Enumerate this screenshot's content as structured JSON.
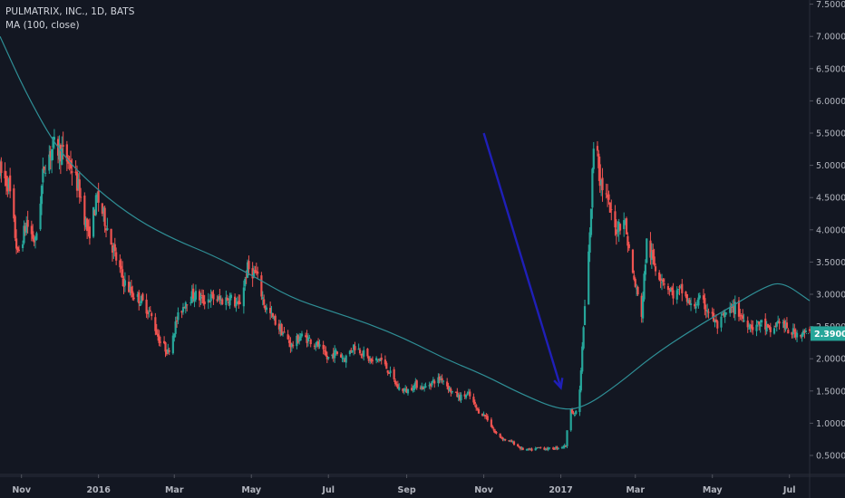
{
  "legend": {
    "symbol_line": "PULMATRIX, INC., 1D, BATS",
    "indicator_line": "MA (100, close)"
  },
  "colors": {
    "background": "#131722",
    "up": "#26a69a",
    "down": "#ef5350",
    "ma": "#2f8f96",
    "arrow": "#1f1fb8",
    "axis_text": "#b2b5be",
    "price_label_bg": "#26a69a"
  },
  "chart_data": {
    "type": "candlestick",
    "title": "PULMATRIX, INC., 1D, BATS",
    "indicator": "MA (100, close)",
    "x_ticks": [
      {
        "label": "Nov",
        "date": "2015-11-01"
      },
      {
        "label": "2016",
        "date": "2016-01-01"
      },
      {
        "label": "Mar",
        "date": "2016-03-01"
      },
      {
        "label": "May",
        "date": "2016-05-01"
      },
      {
        "label": "Jul",
        "date": "2016-07-01"
      },
      {
        "label": "Sep",
        "date": "2016-09-01"
      },
      {
        "label": "Nov",
        "date": "2016-11-01"
      },
      {
        "label": "2017",
        "date": "2017-01-01"
      },
      {
        "label": "Mar",
        "date": "2017-03-01"
      },
      {
        "label": "May",
        "date": "2017-05-01"
      },
      {
        "label": "Jul",
        "date": "2017-07-01"
      }
    ],
    "y_ticks": [
      "0.5000",
      "1.0000",
      "1.5000",
      "2.0000",
      "2.5000",
      "3.0000",
      "3.5000",
      "4.0000",
      "4.5000",
      "5.0000",
      "5.5000",
      "6.0000",
      "6.5000",
      "7.0000",
      "7.5000"
    ],
    "ylim": [
      0.0,
      7.5
    ],
    "xlim": [
      "2015-10-15",
      "2017-07-17"
    ],
    "last_price": {
      "value": 2.39,
      "label": "2.3900"
    },
    "price_path": [
      [
        "2015-10-15",
        4.9
      ],
      [
        "2015-10-22",
        4.7
      ],
      [
        "2015-10-29",
        3.6
      ],
      [
        "2015-11-05",
        4.1
      ],
      [
        "2015-11-12",
        3.8
      ],
      [
        "2015-11-19",
        5.0
      ],
      [
        "2015-11-26",
        5.3
      ],
      [
        "2015-12-03",
        5.2
      ],
      [
        "2015-12-10",
        5.0
      ],
      [
        "2015-12-17",
        4.6
      ],
      [
        "2015-12-24",
        3.9
      ],
      [
        "2015-12-31",
        4.5
      ],
      [
        "2016-01-07",
        4.1
      ],
      [
        "2016-01-14",
        3.6
      ],
      [
        "2016-01-21",
        3.2
      ],
      [
        "2016-01-28",
        3.0
      ],
      [
        "2016-02-04",
        2.9
      ],
      [
        "2016-02-11",
        2.7
      ],
      [
        "2016-02-18",
        2.3
      ],
      [
        "2016-02-25",
        2.1
      ],
      [
        "2016-03-03",
        2.6
      ],
      [
        "2016-03-10",
        2.9
      ],
      [
        "2016-03-17",
        3.0
      ],
      [
        "2016-03-24",
        2.9
      ],
      [
        "2016-03-31",
        2.95
      ],
      [
        "2016-04-07",
        2.9
      ],
      [
        "2016-04-14",
        2.95
      ],
      [
        "2016-04-21",
        2.8
      ],
      [
        "2016-04-28",
        3.4
      ],
      [
        "2016-05-05",
        3.3
      ],
      [
        "2016-05-12",
        2.8
      ],
      [
        "2016-05-19",
        2.6
      ],
      [
        "2016-05-26",
        2.4
      ],
      [
        "2016-06-02",
        2.2
      ],
      [
        "2016-06-09",
        2.35
      ],
      [
        "2016-06-16",
        2.3
      ],
      [
        "2016-06-23",
        2.2
      ],
      [
        "2016-06-30",
        2.0
      ],
      [
        "2016-07-07",
        2.1
      ],
      [
        "2016-07-14",
        2.0
      ],
      [
        "2016-07-21",
        2.2
      ],
      [
        "2016-07-28",
        2.1
      ],
      [
        "2016-08-04",
        1.95
      ],
      [
        "2016-08-11",
        2.0
      ],
      [
        "2016-08-18",
        1.8
      ],
      [
        "2016-08-25",
        1.55
      ],
      [
        "2016-09-01",
        1.5
      ],
      [
        "2016-09-08",
        1.6
      ],
      [
        "2016-09-15",
        1.55
      ],
      [
        "2016-09-22",
        1.65
      ],
      [
        "2016-09-29",
        1.7
      ],
      [
        "2016-10-06",
        1.5
      ],
      [
        "2016-10-13",
        1.4
      ],
      [
        "2016-10-20",
        1.45
      ],
      [
        "2016-10-27",
        1.2
      ],
      [
        "2016-11-03",
        1.1
      ],
      [
        "2016-11-10",
        0.85
      ],
      [
        "2016-11-17",
        0.75
      ],
      [
        "2016-11-24",
        0.7
      ],
      [
        "2016-12-01",
        0.6
      ],
      [
        "2016-12-08",
        0.58
      ],
      [
        "2016-12-15",
        0.62
      ],
      [
        "2016-12-22",
        0.6
      ],
      [
        "2016-12-29",
        0.62
      ],
      [
        "2017-01-05",
        0.65
      ],
      [
        "2017-01-08",
        1.3
      ],
      [
        "2017-01-12",
        1.1
      ],
      [
        "2017-01-16",
        1.5
      ],
      [
        "2017-01-20",
        2.8
      ],
      [
        "2017-01-24",
        3.9
      ],
      [
        "2017-01-28",
        5.8
      ],
      [
        "2017-02-01",
        4.8
      ],
      [
        "2017-02-06",
        4.5
      ],
      [
        "2017-02-13",
        4.0
      ],
      [
        "2017-02-20",
        4.2
      ],
      [
        "2017-02-27",
        3.3
      ],
      [
        "2017-03-06",
        2.7
      ],
      [
        "2017-03-10",
        3.8
      ],
      [
        "2017-03-17",
        3.4
      ],
      [
        "2017-03-24",
        3.2
      ],
      [
        "2017-03-31",
        3.0
      ],
      [
        "2017-04-07",
        3.05
      ],
      [
        "2017-04-14",
        2.8
      ],
      [
        "2017-04-21",
        2.9
      ],
      [
        "2017-04-28",
        2.75
      ],
      [
        "2017-05-05",
        2.5
      ],
      [
        "2017-05-12",
        2.7
      ],
      [
        "2017-05-19",
        2.8
      ],
      [
        "2017-05-26",
        2.6
      ],
      [
        "2017-06-02",
        2.5
      ],
      [
        "2017-06-09",
        2.55
      ],
      [
        "2017-06-16",
        2.4
      ],
      [
        "2017-06-23",
        2.6
      ],
      [
        "2017-06-30",
        2.42
      ],
      [
        "2017-07-07",
        2.4
      ],
      [
        "2017-07-14",
        2.39
      ]
    ],
    "ma_path": [
      [
        "2015-10-15",
        7.0
      ],
      [
        "2015-11-05",
        6.1
      ],
      [
        "2015-12-01",
        5.2
      ],
      [
        "2016-01-01",
        4.6
      ],
      [
        "2016-02-01",
        4.15
      ],
      [
        "2016-03-01",
        3.85
      ],
      [
        "2016-04-01",
        3.6
      ],
      [
        "2016-05-01",
        3.3
      ],
      [
        "2016-06-01",
        2.95
      ],
      [
        "2016-07-01",
        2.75
      ],
      [
        "2016-08-01",
        2.55
      ],
      [
        "2016-09-01",
        2.3
      ],
      [
        "2016-10-01",
        2.0
      ],
      [
        "2016-11-01",
        1.75
      ],
      [
        "2016-12-01",
        1.45
      ],
      [
        "2017-01-01",
        1.2
      ],
      [
        "2017-01-20",
        1.25
      ],
      [
        "2017-02-15",
        1.6
      ],
      [
        "2017-03-15",
        2.05
      ],
      [
        "2017-04-15",
        2.45
      ],
      [
        "2017-05-15",
        2.8
      ],
      [
        "2017-06-10",
        3.1
      ],
      [
        "2017-06-25",
        3.2
      ],
      [
        "2017-07-17",
        2.9
      ]
    ],
    "arrow_annotation": {
      "from": [
        "2016-11-01",
        5.5
      ],
      "to": [
        "2017-01-01",
        1.55
      ]
    }
  }
}
